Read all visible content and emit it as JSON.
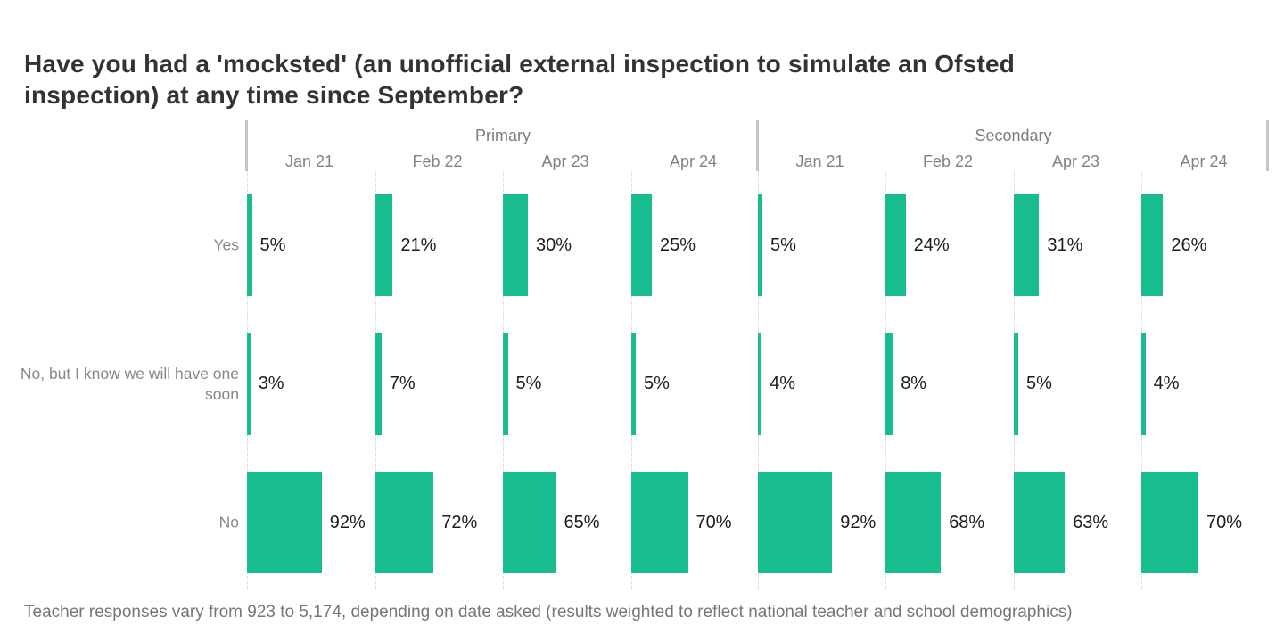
{
  "title": {
    "full": "Have you had a 'mocksted' (an unofficial external inspection to simulate an Ofsted inspection) at any time since September?",
    "lines": [
      "Have you had a 'mocksted' (an unofficial external inspection to simulate an Ofsted",
      "inspection) at any time since September?"
    ]
  },
  "footer": "Teacher responses vary from 923 to 5,174, depending on date asked (results weighted to reflect national teacher and school demographics)",
  "colors": {
    "bar": "#17bc8f",
    "title_text": "#333333",
    "header_text": "#7d7d7d",
    "row_label_text": "#888888",
    "value_text": "#1c1c1c",
    "gridline": "#d2d2d2",
    "separator": "#c6c6c6",
    "footer_text": "#767676"
  },
  "chart_data": {
    "type": "bar",
    "title": "Have you had a 'mocksted' (an unofficial external inspection to simulate an Ofsted inspection) at any time since September?",
    "unit": "%",
    "value_encoding": "bar width proportional to percentage",
    "groups": [
      "Primary",
      "Secondary"
    ],
    "categories": [
      "Jan 21",
      "Feb 22",
      "Apr 23",
      "Apr 24"
    ],
    "rows": [
      {
        "label": "Yes",
        "series": [
          {
            "group": "Primary",
            "values": [
              5,
              21,
              30,
              25
            ]
          },
          {
            "group": "Secondary",
            "values": [
              5,
              24,
              31,
              26
            ]
          }
        ]
      },
      {
        "label": "No, but I know we will have one soon",
        "series": [
          {
            "group": "Primary",
            "values": [
              3,
              7,
              5,
              5
            ]
          },
          {
            "group": "Secondary",
            "values": [
              4,
              8,
              5,
              4
            ]
          }
        ]
      },
      {
        "label": "No",
        "series": [
          {
            "group": "Primary",
            "values": [
              92,
              72,
              65,
              70
            ]
          },
          {
            "group": "Secondary",
            "values": [
              92,
              68,
              63,
              70
            ]
          }
        ]
      }
    ],
    "value_labels_shown": true,
    "grid": "dotted vertical line at left edge of every column",
    "legend_position": "none",
    "footnote": "Teacher responses vary from 923 to 5,174, depending on date asked (results weighted to reflect national teacher and school demographics)"
  }
}
